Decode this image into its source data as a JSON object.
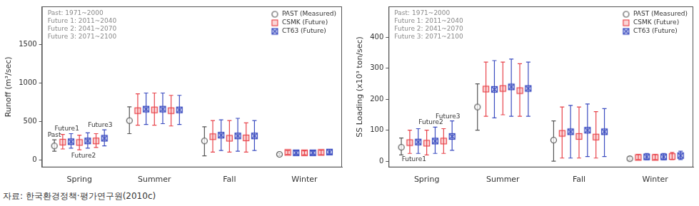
{
  "chart_data": [
    {
      "type": "scatter",
      "period_text": [
        "Past: 1971~2000",
        "Future 1: 2011~2040",
        "Future 2: 2041~2070",
        "Future 3: 2071~2100"
      ],
      "y_label": "Runoff (m³/sec)",
      "categories": [
        null,
        null,
        null,
        null,
        "Spring",
        null,
        null,
        null,
        null,
        null,
        null,
        null,
        null,
        "Summer",
        null,
        null,
        null,
        null,
        null,
        null,
        null,
        null,
        "Fall",
        null,
        null,
        null,
        null,
        null,
        null,
        null,
        null,
        "Winter",
        null,
        null,
        null,
        null
      ],
      "ylim": [
        -100,
        2000
      ],
      "yticks": [
        0,
        500,
        1000,
        1500
      ],
      "grid": false,
      "legend": "upper right",
      "annotations": [
        {
          "text": "Past",
          "indices": [
            1
          ]
        },
        {
          "text": "Future1",
          "indices": [
            2,
            3
          ]
        },
        {
          "text": "Future2",
          "indices": [
            4,
            5
          ]
        },
        {
          "text": "Future3",
          "indices": [
            6,
            7
          ]
        }
      ],
      "series": [
        {
          "name": "PAST (Measured)",
          "color": "#555555",
          "marker": "circle",
          "values": [
            null,
            180,
            null,
            null,
            null,
            null,
            null,
            null,
            null,
            null,
            510,
            null,
            null,
            null,
            null,
            null,
            null,
            null,
            null,
            245,
            null,
            null,
            null,
            null,
            null,
            null,
            null,
            null,
            70,
            null,
            null,
            null,
            null,
            null,
            null,
            null
          ],
          "lower": [
            null,
            110,
            null,
            null,
            null,
            null,
            null,
            null,
            null,
            null,
            340,
            null,
            null,
            null,
            null,
            null,
            null,
            null,
            null,
            50,
            null,
            null,
            null,
            null,
            null,
            null,
            null,
            null,
            55,
            null,
            null,
            null,
            null,
            null,
            null,
            null
          ],
          "upper": [
            null,
            260,
            null,
            null,
            null,
            null,
            null,
            null,
            null,
            null,
            690,
            null,
            null,
            null,
            null,
            null,
            null,
            null,
            null,
            430,
            null,
            null,
            null,
            null,
            null,
            null,
            null,
            null,
            85,
            null,
            null,
            null,
            null,
            null,
            null,
            null
          ]
        },
        {
          "name": "CSMK (Future)",
          "color": "#e8434a",
          "marker": "square",
          "values": [
            null,
            null,
            230,
            null,
            225,
            null,
            245,
            null,
            null,
            null,
            null,
            640,
            null,
            650,
            null,
            640,
            null,
            null,
            null,
            null,
            300,
            null,
            280,
            null,
            285,
            null,
            null,
            null,
            null,
            95,
            null,
            90,
            null,
            95,
            null,
            null
          ],
          "lower": [
            null,
            null,
            140,
            null,
            130,
            null,
            160,
            null,
            null,
            null,
            null,
            450,
            null,
            450,
            null,
            440,
            null,
            null,
            null,
            null,
            100,
            null,
            100,
            null,
            100,
            null,
            null,
            null,
            null,
            70,
            null,
            65,
            null,
            65,
            null,
            null
          ],
          "upper": [
            null,
            null,
            330,
            null,
            320,
            null,
            340,
            null,
            null,
            null,
            null,
            860,
            null,
            870,
            null,
            840,
            null,
            null,
            null,
            null,
            510,
            null,
            510,
            null,
            480,
            null,
            null,
            null,
            null,
            120,
            null,
            115,
            null,
            125,
            null,
            null
          ]
        },
        {
          "name": "CT63 (Future)",
          "color": "#3b4cc0",
          "marker": "square_x",
          "values": [
            null,
            null,
            null,
            235,
            null,
            245,
            null,
            280,
            null,
            null,
            null,
            null,
            660,
            null,
            660,
            null,
            650,
            null,
            null,
            null,
            null,
            320,
            null,
            310,
            null,
            310,
            null,
            null,
            null,
            null,
            90,
            null,
            90,
            null,
            100,
            null
          ],
          "lower": [
            null,
            null,
            null,
            150,
            null,
            150,
            null,
            180,
            null,
            null,
            null,
            null,
            460,
            null,
            470,
            null,
            460,
            null,
            null,
            null,
            null,
            120,
            null,
            110,
            null,
            120,
            null,
            null,
            null,
            null,
            65,
            null,
            65,
            null,
            70,
            null
          ],
          "upper": [
            null,
            null,
            null,
            340,
            null,
            350,
            null,
            390,
            null,
            null,
            null,
            null,
            870,
            null,
            870,
            null,
            840,
            null,
            null,
            null,
            null,
            520,
            null,
            540,
            null,
            510,
            null,
            null,
            null,
            null,
            120,
            null,
            115,
            null,
            135,
            null
          ]
        }
      ]
    },
    {
      "type": "scatter",
      "period_text": [
        "Past: 1971~2000",
        "Future 1: 2011~2040",
        "Future 2: 2041~2070",
        "Future 3: 2071~2100"
      ],
      "y_label": "SS Loading (x10³ ton/sec)",
      "categories": [
        null,
        null,
        null,
        null,
        "Spring",
        null,
        null,
        null,
        null,
        null,
        null,
        null,
        null,
        "Summer",
        null,
        null,
        null,
        null,
        null,
        null,
        null,
        null,
        "Fall",
        null,
        null,
        null,
        null,
        null,
        null,
        null,
        null,
        "Winter",
        null,
        null,
        null,
        null
      ],
      "ylim": [
        -20,
        500
      ],
      "yticks": [
        0,
        100,
        200,
        300,
        400
      ],
      "grid": false,
      "legend": "upper right",
      "annotations": [
        {
          "text": "Future1",
          "indices": [
            2,
            3
          ]
        },
        {
          "text": "Future2",
          "indices": [
            4,
            5
          ]
        },
        {
          "text": "Future3",
          "indices": [
            6,
            7
          ]
        }
      ],
      "series": [
        {
          "name": "PAST (Measured)",
          "color": "#555555",
          "marker": "circle",
          "values": [
            null,
            45,
            null,
            null,
            null,
            null,
            null,
            null,
            null,
            null,
            175,
            null,
            null,
            null,
            null,
            null,
            null,
            null,
            null,
            68,
            null,
            null,
            null,
            null,
            null,
            null,
            null,
            null,
            8,
            null,
            null,
            null,
            null,
            null,
            null,
            null
          ],
          "lower": [
            null,
            20,
            null,
            null,
            null,
            null,
            null,
            null,
            null,
            null,
            100,
            null,
            null,
            null,
            null,
            null,
            null,
            null,
            null,
            0,
            null,
            null,
            null,
            null,
            null,
            null,
            null,
            null,
            3,
            null,
            null,
            null,
            null,
            null,
            null,
            null
          ],
          "upper": [
            null,
            75,
            null,
            null,
            null,
            null,
            null,
            null,
            null,
            null,
            250,
            null,
            null,
            null,
            null,
            null,
            null,
            null,
            null,
            130,
            null,
            null,
            null,
            null,
            null,
            null,
            null,
            null,
            15,
            null,
            null,
            null,
            null,
            null,
            null,
            null
          ]
        },
        {
          "name": "CSMK (Future)",
          "color": "#e8434a",
          "marker": "square",
          "values": [
            null,
            null,
            60,
            null,
            58,
            null,
            65,
            null,
            null,
            null,
            null,
            233,
            null,
            235,
            null,
            228,
            null,
            null,
            null,
            null,
            90,
            null,
            80,
            null,
            78,
            null,
            null,
            null,
            null,
            12,
            null,
            12,
            null,
            15,
            null,
            null
          ],
          "lower": [
            null,
            null,
            25,
            null,
            20,
            null,
            25,
            null,
            null,
            null,
            null,
            145,
            null,
            150,
            null,
            145,
            null,
            null,
            null,
            null,
            10,
            null,
            10,
            null,
            10,
            null,
            null,
            null,
            null,
            5,
            null,
            5,
            null,
            5,
            null,
            null
          ],
          "upper": [
            null,
            null,
            100,
            null,
            100,
            null,
            105,
            null,
            null,
            null,
            null,
            320,
            null,
            320,
            null,
            315,
            null,
            null,
            null,
            null,
            175,
            null,
            175,
            null,
            160,
            null,
            null,
            null,
            null,
            22,
            null,
            22,
            null,
            28,
            null,
            null
          ]
        },
        {
          "name": "CT63 (Future)",
          "color": "#3b4cc0",
          "marker": "square_x",
          "values": [
            null,
            null,
            null,
            62,
            null,
            65,
            null,
            80,
            null,
            null,
            null,
            null,
            232,
            null,
            240,
            null,
            235,
            null,
            null,
            null,
            null,
            95,
            null,
            100,
            null,
            95,
            null,
            null,
            null,
            null,
            14,
            null,
            14,
            null,
            18,
            null
          ],
          "lower": [
            null,
            null,
            null,
            25,
            null,
            25,
            null,
            35,
            null,
            null,
            null,
            null,
            140,
            null,
            145,
            null,
            145,
            null,
            null,
            null,
            null,
            10,
            null,
            15,
            null,
            15,
            null,
            null,
            null,
            null,
            5,
            null,
            5,
            null,
            5,
            null
          ],
          "upper": [
            null,
            null,
            null,
            105,
            null,
            110,
            null,
            130,
            null,
            null,
            null,
            null,
            325,
            null,
            330,
            null,
            320,
            null,
            null,
            null,
            null,
            180,
            null,
            185,
            null,
            170,
            null,
            null,
            null,
            null,
            25,
            null,
            25,
            null,
            32,
            null
          ]
        }
      ]
    }
  ],
  "source": "자료: 한국환경정책·평가연구원(2010c)"
}
